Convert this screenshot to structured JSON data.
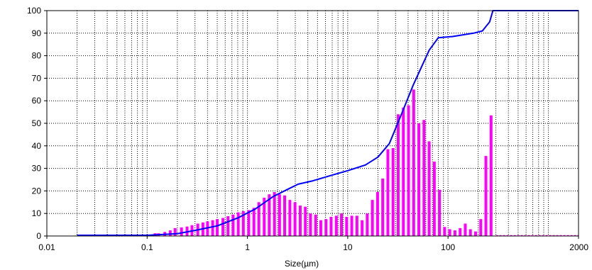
{
  "chart_data": {
    "type": "bar",
    "x_scale": "log",
    "xlim": [
      0.01,
      2000
    ],
    "ylim": [
      0,
      100
    ],
    "xlabel": "Size(µm)",
    "ylabel": "",
    "grid": true,
    "x_ticks": [
      "0.01",
      "0.1",
      "1",
      "10",
      "100",
      "2000"
    ],
    "y_ticks": [
      "0",
      "10",
      "20",
      "30",
      "40",
      "50",
      "60",
      "70",
      "80",
      "90",
      "100"
    ],
    "colors": {
      "bars": "#ff00ff",
      "curve": "#0000ff",
      "grid": "#000000"
    },
    "series": [
      {
        "kind": "bar",
        "points": [
          [
            0.12,
            1.2
          ],
          [
            0.13,
            1.2
          ],
          [
            0.15,
            1.8
          ],
          [
            0.17,
            2.5
          ],
          [
            0.19,
            3.5
          ],
          [
            0.22,
            3.8
          ],
          [
            0.25,
            4.2
          ],
          [
            0.28,
            4.8
          ],
          [
            0.32,
            5.5
          ],
          [
            0.36,
            6.0
          ],
          [
            0.4,
            6.5
          ],
          [
            0.45,
            7.0
          ],
          [
            0.5,
            7.5
          ],
          [
            0.57,
            8.0
          ],
          [
            0.64,
            8.8
          ],
          [
            0.72,
            9.5
          ],
          [
            0.81,
            10.5
          ],
          [
            0.91,
            11.0
          ],
          [
            1.03,
            11.5
          ],
          [
            1.16,
            12.5
          ],
          [
            1.3,
            15.0
          ],
          [
            1.47,
            17.0
          ],
          [
            1.65,
            18.5
          ],
          [
            1.86,
            19.5
          ],
          [
            2.09,
            18.5
          ],
          [
            2.35,
            18.0
          ],
          [
            2.65,
            16.0
          ],
          [
            2.98,
            15.0
          ],
          [
            3.36,
            13.5
          ],
          [
            3.78,
            13.0
          ],
          [
            4.25,
            10.0
          ],
          [
            4.79,
            9.5
          ],
          [
            5.39,
            7.0
          ],
          [
            6.07,
            7.5
          ],
          [
            6.83,
            8.5
          ],
          [
            7.69,
            9.0
          ],
          [
            8.66,
            10.0
          ],
          [
            9.75,
            8.5
          ],
          [
            10.97,
            9.0
          ],
          [
            12.35,
            9.0
          ],
          [
            13.91,
            7.0
          ],
          [
            15.65,
            10.0
          ],
          [
            17.62,
            16.0
          ],
          [
            19.84,
            19.5
          ],
          [
            22.33,
            25.5
          ],
          [
            25.14,
            38.5
          ],
          [
            28.3,
            39.0
          ],
          [
            31.86,
            54.0
          ],
          [
            35.86,
            57.0
          ],
          [
            40.37,
            58.0
          ],
          [
            45.45,
            65.0
          ],
          [
            51.17,
            50.0
          ],
          [
            57.6,
            51.5
          ],
          [
            64.84,
            42.0
          ],
          [
            73.0,
            33.0
          ],
          [
            82.17,
            20.5
          ],
          [
            92.51,
            4.0
          ],
          [
            104.14,
            3.0
          ],
          [
            117.23,
            2.5
          ],
          [
            131.97,
            3.5
          ],
          [
            148.56,
            5.5
          ],
          [
            167.24,
            3.0
          ],
          [
            188.27,
            2.0
          ],
          [
            211.94,
            7.5
          ],
          [
            238.58,
            35.5
          ],
          [
            268.58,
            53.5
          ]
        ]
      },
      {
        "kind": "line",
        "points": [
          [
            0.02,
            0.3
          ],
          [
            0.1,
            0.3
          ],
          [
            0.2,
            1.0
          ],
          [
            0.3,
            2.5
          ],
          [
            0.5,
            4.5
          ],
          [
            0.8,
            8.0
          ],
          [
            1.2,
            12.0
          ],
          [
            1.8,
            17.5
          ],
          [
            2.6,
            21.0
          ],
          [
            3.2,
            23.0
          ],
          [
            4.5,
            24.5
          ],
          [
            7.0,
            27.0
          ],
          [
            10.0,
            29.0
          ],
          [
            15.0,
            31.5
          ],
          [
            20.0,
            35.0
          ],
          [
            26.0,
            41.0
          ],
          [
            35.0,
            55.0
          ],
          [
            45.0,
            67.0
          ],
          [
            55.0,
            75.5
          ],
          [
            65.0,
            82.5
          ],
          [
            80.0,
            88.0
          ],
          [
            110.0,
            88.5
          ],
          [
            180.0,
            90.0
          ],
          [
            220.0,
            91.0
          ],
          [
            260.0,
            95.0
          ],
          [
            280.0,
            100.0
          ],
          [
            2000.0,
            100.0
          ]
        ]
      }
    ]
  }
}
